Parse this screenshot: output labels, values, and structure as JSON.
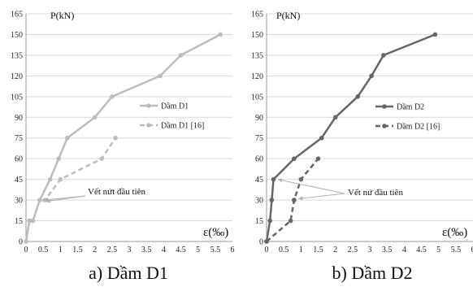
{
  "chart_data": [
    {
      "type": "line",
      "caption": "a) Dầm D1",
      "ylabel": "P(kN)",
      "xlabel": "ε(‰)",
      "xlim": [
        0,
        6
      ],
      "ylim": [
        0,
        165
      ],
      "xticks": [
        0,
        0.5,
        1,
        1.5,
        2,
        2.5,
        3,
        3.5,
        4,
        4.5,
        5,
        5.5,
        6
      ],
      "yticks": [
        0,
        15,
        30,
        45,
        60,
        75,
        90,
        105,
        120,
        135,
        150,
        165
      ],
      "grid": "horizontal",
      "legend_position": "right",
      "annotation": "Vết nứt đầu tiên",
      "color": "#bdbdbd",
      "series": [
        {
          "name": "Dầm D1",
          "style": "solid",
          "x": [
            0,
            0.1,
            0.2,
            0.4,
            0.7,
            0.95,
            1.2,
            2.0,
            2.5,
            3.9,
            4.5,
            5.65
          ],
          "y": [
            0,
            15,
            15,
            30,
            45,
            60,
            75,
            90,
            105,
            120,
            135,
            150
          ]
        },
        {
          "name": "Dầm D1 [16]",
          "style": "dashed",
          "x": [
            0,
            0.1,
            0.2,
            0.4,
            0.55,
            1.0,
            2.2,
            2.6
          ],
          "y": [
            0,
            15,
            15,
            30,
            30,
            45,
            60,
            75
          ]
        }
      ]
    },
    {
      "type": "line",
      "caption": "b) Dầm D2",
      "ylabel": "P(kN)",
      "xlabel": "ε(‰)",
      "xlim": [
        0,
        6
      ],
      "ylim": [
        0,
        165
      ],
      "xticks": [
        0,
        0.5,
        1,
        1.5,
        2,
        2.5,
        3,
        3.5,
        4,
        4.5,
        5,
        5.5,
        6
      ],
      "yticks": [
        0,
        15,
        30,
        45,
        60,
        75,
        90,
        105,
        120,
        135,
        150,
        165
      ],
      "grid": "horizontal",
      "legend_position": "right",
      "annotation": "Vết nứ đầu tiên",
      "color": "#666666",
      "series": [
        {
          "name": "Dầm D2",
          "style": "solid",
          "x": [
            0,
            0.1,
            0.15,
            0.2,
            0.8,
            1.6,
            2.0,
            2.65,
            3.05,
            3.4,
            4.9
          ],
          "y": [
            0,
            15,
            30,
            45,
            60,
            75,
            90,
            105,
            120,
            135,
            150
          ]
        },
        {
          "name": "Dầm D2 [16]",
          "style": "dashed",
          "x": [
            0,
            0.7,
            0.8,
            0.8,
            1.0,
            1.5
          ],
          "y": [
            0,
            15,
            30,
            30,
            45,
            60
          ]
        }
      ]
    }
  ]
}
